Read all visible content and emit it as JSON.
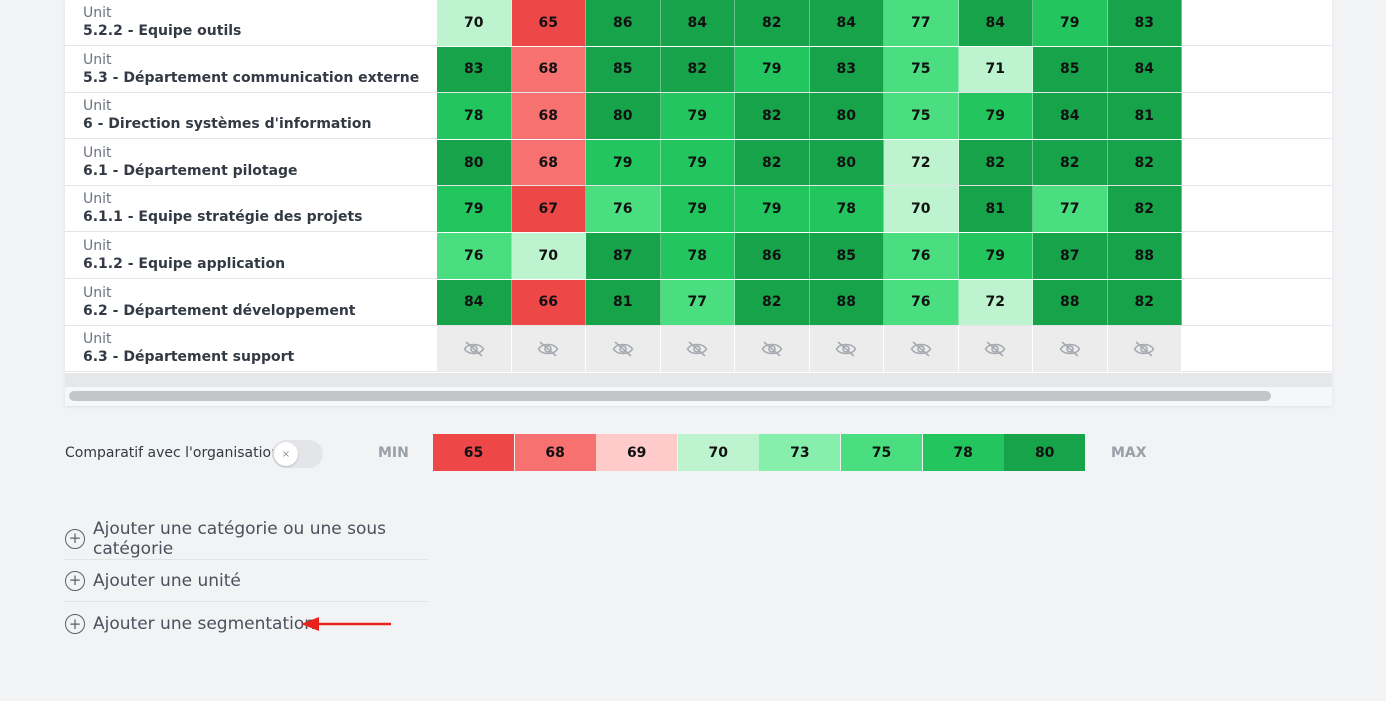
{
  "table": {
    "rows": [
      {
        "type": "Unit",
        "name": "5.2.2 - Equipe outils",
        "values": [
          "70",
          "65",
          "86",
          "84",
          "82",
          "84",
          "77",
          "84",
          "79",
          "83"
        ],
        "colors": [
          "#bdf4cf",
          "#ed4748",
          "#16a34a",
          "#16a34a",
          "#16a34a",
          "#16a34a",
          "#4ade80",
          "#16a34a",
          "#22c55e",
          "#16a34a"
        ]
      },
      {
        "type": "Unit",
        "name": "5.3 - Département communication externe",
        "values": [
          "83",
          "68",
          "85",
          "82",
          "79",
          "83",
          "75",
          "71",
          "85",
          "84"
        ],
        "colors": [
          "#16a34a",
          "#f87171",
          "#16a34a",
          "#16a34a",
          "#22c55e",
          "#16a34a",
          "#4ade80",
          "#bdf4cf",
          "#16a34a",
          "#16a34a"
        ]
      },
      {
        "type": "Unit",
        "name": "6 - Direction systèmes d'information",
        "values": [
          "78",
          "68",
          "80",
          "79",
          "82",
          "80",
          "75",
          "79",
          "84",
          "81"
        ],
        "colors": [
          "#22c55e",
          "#f87171",
          "#16a34a",
          "#22c55e",
          "#16a34a",
          "#16a34a",
          "#4ade80",
          "#22c55e",
          "#16a34a",
          "#16a34a"
        ]
      },
      {
        "type": "Unit",
        "name": "6.1 - Département pilotage",
        "values": [
          "80",
          "68",
          "79",
          "79",
          "82",
          "80",
          "72",
          "82",
          "82",
          "82"
        ],
        "colors": [
          "#16a34a",
          "#f87171",
          "#22c55e",
          "#22c55e",
          "#16a34a",
          "#16a34a",
          "#bdf4cf",
          "#16a34a",
          "#16a34a",
          "#16a34a"
        ]
      },
      {
        "type": "Unit",
        "name": "6.1.1 - Equipe stratégie des projets",
        "values": [
          "79",
          "67",
          "76",
          "79",
          "79",
          "78",
          "70",
          "81",
          "77",
          "82"
        ],
        "colors": [
          "#22c55e",
          "#ed4748",
          "#4ade80",
          "#22c55e",
          "#22c55e",
          "#22c55e",
          "#bdf4cf",
          "#16a34a",
          "#4ade80",
          "#16a34a"
        ]
      },
      {
        "type": "Unit",
        "name": "6.1.2 - Equipe application",
        "values": [
          "76",
          "70",
          "87",
          "78",
          "86",
          "85",
          "76",
          "79",
          "87",
          "88"
        ],
        "colors": [
          "#4ade80",
          "#bdf4cf",
          "#16a34a",
          "#22c55e",
          "#16a34a",
          "#16a34a",
          "#4ade80",
          "#22c55e",
          "#16a34a",
          "#16a34a"
        ]
      },
      {
        "type": "Unit",
        "name": "6.2 - Département développement",
        "values": [
          "84",
          "66",
          "81",
          "77",
          "82",
          "88",
          "76",
          "72",
          "88",
          "82"
        ],
        "colors": [
          "#16a34a",
          "#ed4748",
          "#16a34a",
          "#4ade80",
          "#16a34a",
          "#16a34a",
          "#4ade80",
          "#bdf4cf",
          "#16a34a",
          "#16a34a"
        ]
      },
      {
        "type": "Unit",
        "name": "6.3 - Département support",
        "hidden": true,
        "values": []
      }
    ]
  },
  "compare": {
    "label": "Comparatif avec l'organisation",
    "toggle_icon": "×",
    "min_label": "MIN",
    "max_label": "MAX",
    "legend": [
      {
        "value": "65",
        "color": "#ed4748"
      },
      {
        "value": "68",
        "color": "#f87171"
      },
      {
        "value": "69",
        "color": "#fecaca"
      },
      {
        "value": "70",
        "color": "#bdf4cf"
      },
      {
        "value": "73",
        "color": "#86efac"
      },
      {
        "value": "75",
        "color": "#4ade80"
      },
      {
        "value": "78",
        "color": "#22c55e"
      },
      {
        "value": "80",
        "color": "#16a34a"
      }
    ]
  },
  "actions": {
    "add_category": "Ajouter une catégorie ou une sous catégorie",
    "add_unit": "Ajouter une unité",
    "add_segmentation": "Ajouter une segmentation",
    "plus_icon": "+"
  },
  "colors": {
    "arrow": "#e8241c"
  }
}
